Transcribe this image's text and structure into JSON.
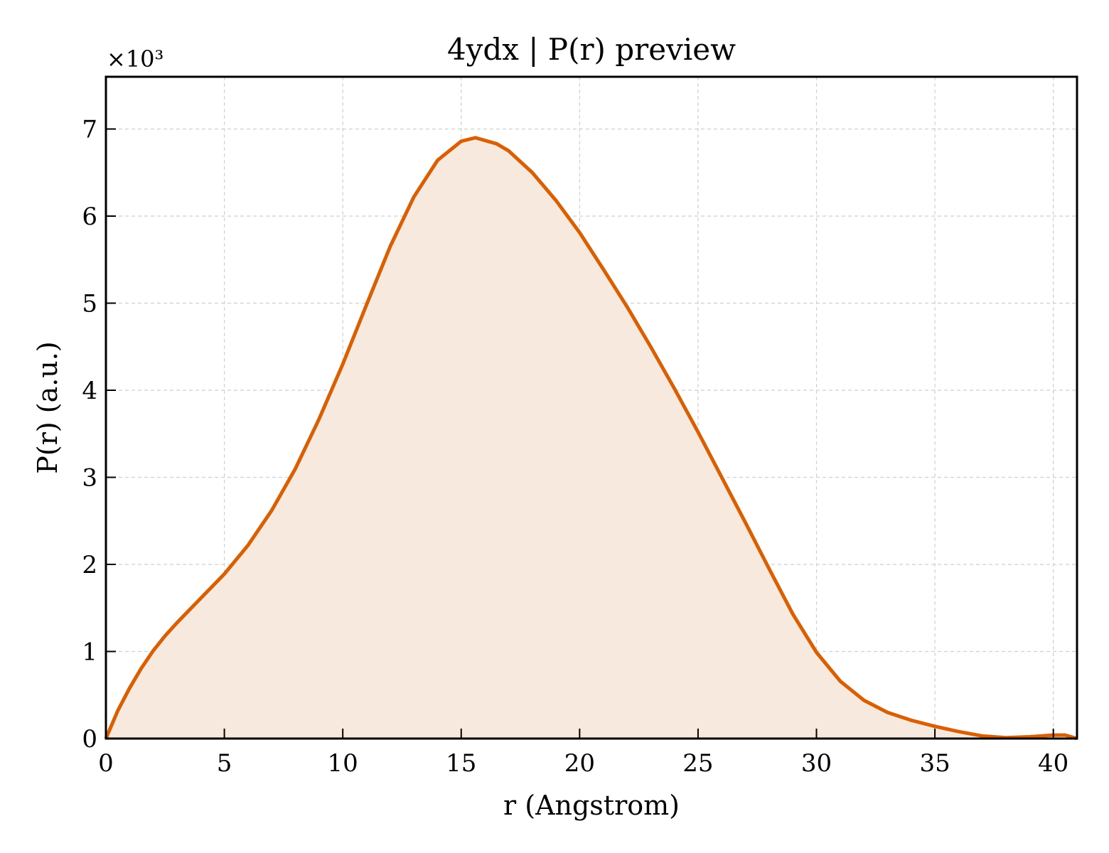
{
  "chart_data": {
    "type": "area",
    "title": "4ydx | P(r) preview",
    "xlabel": "r (Angstrom)",
    "ylabel": "P(r) (a.u.)",
    "y_multiplier_label": "×10³",
    "xlim": [
      0,
      41
    ],
    "ylim": [
      0,
      7.6
    ],
    "x_ticks": [
      0,
      5,
      10,
      15,
      20,
      25,
      30,
      35,
      40
    ],
    "y_ticks": [
      0,
      1,
      2,
      3,
      4,
      5,
      6,
      7
    ],
    "grid": true,
    "line_color": "#d95f02",
    "fill_color": "#f8e9de",
    "series": [
      {
        "x": [
          0,
          0.5,
          1,
          1.5,
          2,
          2.5,
          3,
          4,
          5,
          6,
          7,
          8,
          9,
          10,
          11,
          12,
          13,
          14,
          15,
          15.6,
          16.5,
          17,
          18,
          19,
          20,
          21,
          22,
          23,
          24,
          25,
          26,
          27,
          28,
          29,
          30,
          31,
          32,
          33,
          34,
          35,
          36,
          37,
          38,
          39,
          40,
          40.5,
          41
        ],
        "y": [
          0,
          0.32,
          0.58,
          0.81,
          1.01,
          1.18,
          1.33,
          1.61,
          1.89,
          2.22,
          2.62,
          3.1,
          3.67,
          4.3,
          4.98,
          5.65,
          6.22,
          6.64,
          6.86,
          6.9,
          6.83,
          6.75,
          6.5,
          6.18,
          5.81,
          5.39,
          4.96,
          4.5,
          4.02,
          3.52,
          3.0,
          2.48,
          1.95,
          1.43,
          0.99,
          0.66,
          0.44,
          0.3,
          0.21,
          0.14,
          0.08,
          0.03,
          0.01,
          0.02,
          0.04,
          0.04,
          0.0
        ]
      }
    ]
  }
}
